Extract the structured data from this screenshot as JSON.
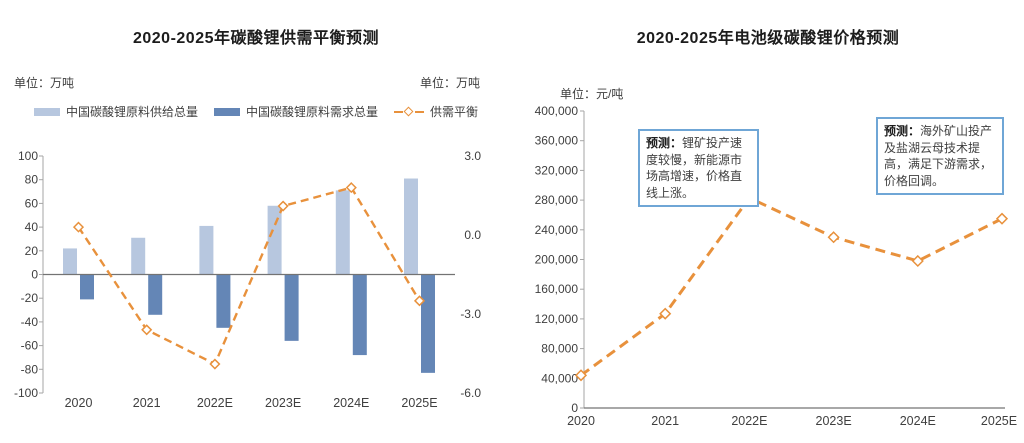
{
  "left_chart": {
    "title": "2020-2025年碳酸锂供需平衡预测",
    "unit_left": "单位：万吨",
    "unit_right": "单位：万吨",
    "legend": [
      {
        "label": "中国碳酸锂原料供给总量",
        "color": "#b7c7df",
        "type": "bar"
      },
      {
        "label": "中国碳酸锂原料需求总量",
        "color": "#6486b6",
        "type": "bar"
      },
      {
        "label": "供需平衡",
        "color": "#e8913c",
        "type": "dashed-line"
      }
    ],
    "chart_data": {
      "type": "bar",
      "categories": [
        "2020",
        "2021",
        "2022E",
        "2023E",
        "2024E",
        "2025E"
      ],
      "series": [
        {
          "name": "中国碳酸锂原料供给总量",
          "type": "bar",
          "axis": "left",
          "color": "#b7c7df",
          "values": [
            22,
            31,
            41,
            58,
            71,
            81
          ]
        },
        {
          "name": "中国碳酸锂原料需求总量",
          "type": "bar",
          "axis": "left",
          "color": "#6486b6",
          "values": [
            -21,
            -34,
            -45,
            -56,
            -68,
            -83
          ]
        },
        {
          "name": "供需平衡",
          "type": "line",
          "axis": "right",
          "color": "#e8913c",
          "values": [
            0.3,
            -3.6,
            -4.9,
            1.1,
            1.8,
            -2.5
          ]
        }
      ],
      "left_axis": {
        "min": -100,
        "max": 100,
        "step": 20,
        "tick_labels": [
          "100",
          "80",
          "60",
          "40",
          "20",
          "0",
          "-20",
          "-40",
          "-60",
          "-80",
          "-100"
        ]
      },
      "right_axis": {
        "min": -6.0,
        "max": 3.0,
        "step": 3.0,
        "tick_labels": [
          "3.0",
          "0.0",
          "-3.0",
          "-6.0"
        ]
      },
      "grid": false,
      "legend_position": "top"
    }
  },
  "right_chart": {
    "title": "2020-2025年电池级碳酸锂价格预测",
    "unit": "单位：元/吨",
    "annotations": [
      {
        "bold": "预测：",
        "text": "锂矿投产速度较慢，新能源市场高增速，价格直线上涨。",
        "border_color": "#6fa6d6"
      },
      {
        "bold": "预测：",
        "text": "海外矿山投产及盐湖云母技术提高，满足下游需求，价格回调。",
        "border_color": "#6fa6d6"
      }
    ],
    "chart_data": {
      "type": "line",
      "categories": [
        "2020",
        "2021",
        "2022E",
        "2023E",
        "2024E",
        "2025E"
      ],
      "values": [
        44000,
        127000,
        283000,
        230000,
        198000,
        255000
      ],
      "line_color": "#e8913c",
      "marker": "open-diamond",
      "ylabel": "元/吨",
      "ylim": [
        0,
        400000
      ],
      "ytick_step": 40000,
      "ytick_labels": [
        "400,000",
        "360,000",
        "320,000",
        "280,000",
        "240,000",
        "200,000",
        "160,000",
        "120,000",
        "80,000",
        "40,000",
        "0"
      ],
      "grid": false
    }
  }
}
